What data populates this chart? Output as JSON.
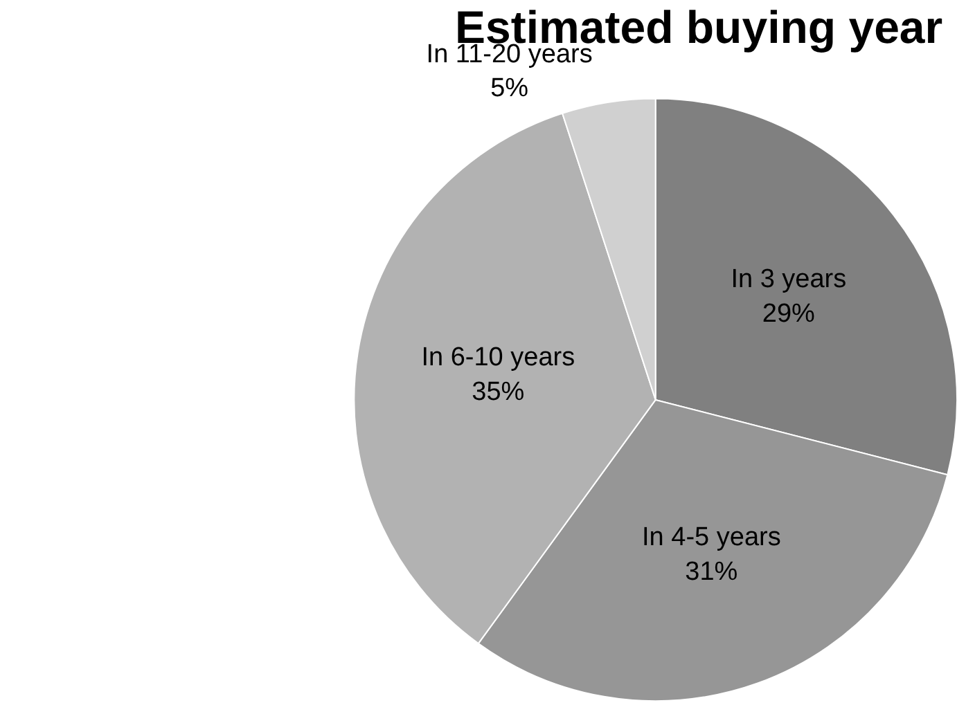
{
  "chart_data": {
    "type": "pie",
    "title": "Estimated buying year",
    "categories": [
      "In 3 years",
      "In 4-5 years",
      "In 6-10 years",
      "In 11-20 years"
    ],
    "values": [
      29,
      31,
      35,
      5
    ],
    "value_labels": [
      "29%",
      "31%",
      "35%",
      "5%"
    ],
    "colors": [
      "#808080",
      "#969696",
      "#b2b2b2",
      "#d0d0d0"
    ],
    "legend": false
  }
}
